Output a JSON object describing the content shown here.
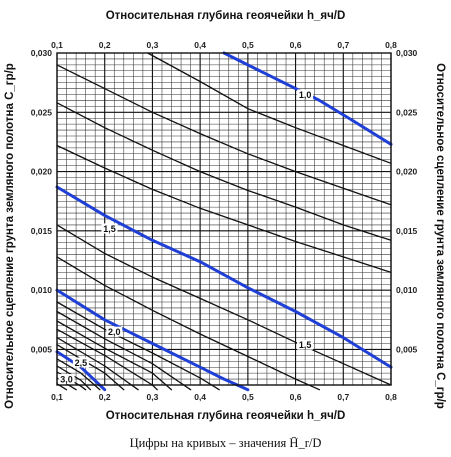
{
  "chart_data": {
    "type": "line",
    "title": "",
    "xlabel": "Относительная глубина геоячейки h_яч/D",
    "ylabel": "Относительное сцепление грунта земляного полотна C_гр/p",
    "xlim": [
      0.1,
      0.8
    ],
    "ylim": [
      0.002,
      0.03
    ],
    "x_ticks": [
      "0,1",
      "0,2",
      "0,3",
      "0,4",
      "0,5",
      "0,6",
      "0,7",
      "0,8"
    ],
    "y_ticks": [
      "0,005",
      "0,010",
      "0,015",
      "0,020",
      "0,025",
      "0,030"
    ],
    "grid": "on",
    "caption": "Цифры на кривых – значения H̄_r/D",
    "curve_labels": [
      "1,0",
      "1,5",
      "1,5",
      "2,0",
      "2,5",
      "3,0"
    ],
    "series": [
      {
        "highlight": true,
        "label": "1,0",
        "points": [
          [
            0.45,
            0.03
          ],
          [
            0.55,
            0.028
          ],
          [
            0.65,
            0.026
          ],
          [
            0.72,
            0.0243
          ],
          [
            0.8,
            0.0223
          ]
        ]
      },
      {
        "highlight": false,
        "points": [
          [
            0.29,
            0.03
          ],
          [
            0.4,
            0.0276
          ],
          [
            0.5,
            0.0253
          ],
          [
            0.6,
            0.0237
          ],
          [
            0.7,
            0.0222
          ],
          [
            0.8,
            0.0207
          ]
        ]
      },
      {
        "highlight": false,
        "points": [
          [
            0.1,
            0.029
          ],
          [
            0.2,
            0.027
          ],
          [
            0.3,
            0.025
          ],
          [
            0.4,
            0.0232
          ],
          [
            0.5,
            0.0215
          ],
          [
            0.6,
            0.02
          ],
          [
            0.7,
            0.0186
          ],
          [
            0.8,
            0.0172
          ]
        ]
      },
      {
        "highlight": false,
        "points": [
          [
            0.1,
            0.0258
          ],
          [
            0.2,
            0.0237
          ],
          [
            0.3,
            0.0218
          ],
          [
            0.4,
            0.02
          ],
          [
            0.5,
            0.0184
          ],
          [
            0.6,
            0.017
          ],
          [
            0.7,
            0.0155
          ],
          [
            0.8,
            0.0142
          ]
        ]
      },
      {
        "highlight": false,
        "points": [
          [
            0.1,
            0.0222
          ],
          [
            0.2,
            0.0203
          ],
          [
            0.3,
            0.0185
          ],
          [
            0.4,
            0.0169
          ],
          [
            0.5,
            0.0155
          ],
          [
            0.6,
            0.0141
          ],
          [
            0.7,
            0.0128
          ],
          [
            0.8,
            0.0115
          ]
        ]
      },
      {
        "highlight": true,
        "label": "1,5",
        "points": [
          [
            0.1,
            0.0187
          ],
          [
            0.2,
            0.0163
          ],
          [
            0.3,
            0.0142
          ],
          [
            0.4,
            0.0124
          ],
          [
            0.5,
            0.0102
          ],
          [
            0.6,
            0.0082
          ],
          [
            0.7,
            0.006
          ],
          [
            0.8,
            0.0035
          ]
        ]
      },
      {
        "highlight": false,
        "points": [
          [
            0.1,
            0.0155
          ],
          [
            0.2,
            0.0131
          ],
          [
            0.3,
            0.0111
          ],
          [
            0.4,
            0.0093
          ],
          [
            0.5,
            0.0075
          ],
          [
            0.6,
            0.0056
          ],
          [
            0.7,
            0.0038
          ],
          [
            0.8,
            0.002
          ]
        ]
      },
      {
        "highlight": false,
        "points": [
          [
            0.1,
            0.0128
          ],
          [
            0.2,
            0.0104
          ],
          [
            0.3,
            0.0083
          ],
          [
            0.4,
            0.0063
          ],
          [
            0.5,
            0.0044
          ],
          [
            0.6,
            0.0025
          ],
          [
            0.65,
            0.0016
          ]
        ]
      },
      {
        "highlight": true,
        "label": "1,5",
        "points": [
          [
            0.1,
            0.01
          ],
          [
            0.2,
            0.0075
          ],
          [
            0.3,
            0.0055
          ],
          [
            0.4,
            0.0035
          ],
          [
            0.45,
            0.0025
          ],
          [
            0.5,
            0.0016
          ]
        ]
      },
      {
        "highlight": false,
        "points": [
          [
            0.1,
            0.009
          ],
          [
            0.2,
            0.0067
          ],
          [
            0.3,
            0.0047
          ],
          [
            0.4,
            0.0026
          ],
          [
            0.44,
            0.0016
          ]
        ]
      },
      {
        "highlight": false,
        "points": [
          [
            0.1,
            0.0082
          ],
          [
            0.2,
            0.0059
          ],
          [
            0.3,
            0.0038
          ],
          [
            0.38,
            0.0016
          ]
        ]
      },
      {
        "highlight": false,
        "points": [
          [
            0.1,
            0.0074
          ],
          [
            0.2,
            0.0051
          ],
          [
            0.3,
            0.003
          ],
          [
            0.34,
            0.0016
          ]
        ]
      },
      {
        "highlight": false,
        "label": "2,0",
        "points": [
          [
            0.1,
            0.0067
          ],
          [
            0.2,
            0.0045
          ],
          [
            0.3,
            0.002
          ],
          [
            0.31,
            0.0016
          ]
        ]
      },
      {
        "highlight": false,
        "points": [
          [
            0.1,
            0.006
          ],
          [
            0.2,
            0.0036
          ],
          [
            0.27,
            0.0016
          ]
        ]
      },
      {
        "highlight": false,
        "points": [
          [
            0.1,
            0.0054
          ],
          [
            0.2,
            0.003
          ],
          [
            0.24,
            0.0016
          ]
        ]
      },
      {
        "highlight": true,
        "points": [
          [
            0.1,
            0.0048
          ],
          [
            0.15,
            0.0035
          ],
          [
            0.2,
            0.0016
          ]
        ]
      },
      {
        "highlight": false,
        "label": "2,5",
        "points": [
          [
            0.1,
            0.0042
          ],
          [
            0.15,
            0.003
          ],
          [
            0.19,
            0.0016
          ]
        ]
      },
      {
        "highlight": false,
        "points": [
          [
            0.1,
            0.0036
          ],
          [
            0.15,
            0.0024
          ],
          [
            0.17,
            0.0016
          ]
        ]
      },
      {
        "highlight": false,
        "points": [
          [
            0.1,
            0.0031
          ],
          [
            0.15,
            0.0019
          ],
          [
            0.16,
            0.0016
          ]
        ]
      },
      {
        "highlight": false,
        "label": "3,0",
        "points": [
          [
            0.1,
            0.0026
          ],
          [
            0.14,
            0.0016
          ]
        ]
      },
      {
        "highlight": false,
        "points": [
          [
            0.1,
            0.0021
          ],
          [
            0.12,
            0.0016
          ]
        ]
      }
    ],
    "label_positions": [
      {
        "text": "1,0",
        "at": [
          0.62,
          0.0265
        ]
      },
      {
        "text": "1,5",
        "at": [
          0.21,
          0.0152
        ]
      },
      {
        "text": "1,5",
        "at": [
          0.62,
          0.0054
        ]
      },
      {
        "text": "2,0",
        "at": [
          0.22,
          0.0065
        ]
      },
      {
        "text": "2,5",
        "at": [
          0.15,
          0.0039
        ]
      },
      {
        "text": "3,0",
        "at": [
          0.12,
          0.0025
        ]
      }
    ]
  }
}
